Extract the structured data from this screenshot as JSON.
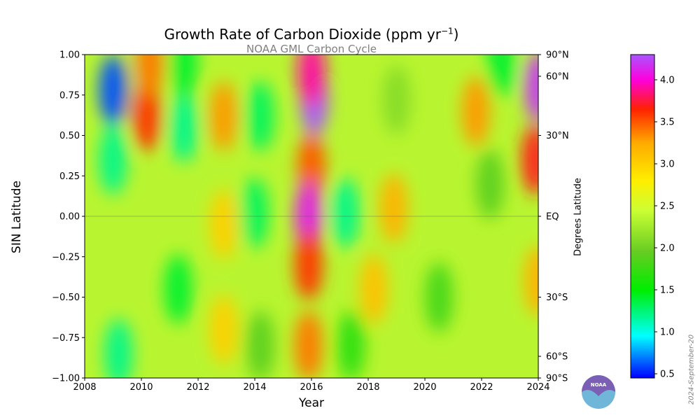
{
  "chart_data": {
    "type": "heatmap",
    "title": "Growth Rate of Carbon Dioxide (ppm yr",
    "title_superscript": "−1",
    "title_suffix": ")",
    "subtitle": "NOAA GML Carbon Cycle",
    "xlabel": "Year",
    "ylabel": "SIN Latitude",
    "ylabel_right": "Degrees Latitude",
    "xlim": [
      2008,
      2024
    ],
    "ylim": [
      -1.0,
      1.0
    ],
    "x_ticks": [
      2008,
      2010,
      2012,
      2014,
      2016,
      2018,
      2020,
      2022,
      2024
    ],
    "y_ticks": [
      -1.0,
      -0.75,
      -0.5,
      -0.25,
      0.0,
      0.25,
      0.5,
      0.75,
      1.0
    ],
    "y_tick_labels": [
      "−1.00",
      "−0.75",
      "−0.50",
      "−0.25",
      "0.00",
      "0.25",
      "0.50",
      "0.75",
      "1.00"
    ],
    "right_axis_ticks": [
      {
        "sin": 1.0,
        "label": "90°N"
      },
      {
        "sin": 0.866,
        "label": "60°N"
      },
      {
        "sin": 0.5,
        "label": "30°N"
      },
      {
        "sin": 0.0,
        "label": "EQ"
      },
      {
        "sin": -0.5,
        "label": "30°S"
      },
      {
        "sin": -0.866,
        "label": "60°S"
      },
      {
        "sin": -1.0,
        "label": "90°S"
      }
    ],
    "colorbar": {
      "min": 0.45,
      "max": 4.3,
      "ticks": [
        0.5,
        1.0,
        1.5,
        2.0,
        2.5,
        3.0,
        3.5,
        4.0
      ],
      "tick_labels": [
        "0.5",
        "1.0",
        "1.5",
        "2.0",
        "2.5",
        "3.0",
        "3.5",
        "4.0"
      ],
      "colormap": [
        [
          0.45,
          "#0000ff"
        ],
        [
          0.95,
          "#00ffff"
        ],
        [
          1.5,
          "#00ee00"
        ],
        [
          1.95,
          "#66cc22"
        ],
        [
          2.45,
          "#ccff33"
        ],
        [
          2.8,
          "#ffee00"
        ],
        [
          3.25,
          "#ffaa00"
        ],
        [
          3.65,
          "#ff2200"
        ],
        [
          4.0,
          "#ff00dd"
        ],
        [
          4.3,
          "#aa55ff"
        ]
      ]
    },
    "grid": false,
    "equator_line": true,
    "features": [
      {
        "year": 2009.0,
        "lat": 0.78,
        "value": 0.6
      },
      {
        "year": 2009.0,
        "lat": 0.35,
        "value": 1.2
      },
      {
        "year": 2010.2,
        "lat": 0.62,
        "value": 3.6
      },
      {
        "year": 2010.3,
        "lat": 0.95,
        "value": 3.4
      },
      {
        "year": 2011.5,
        "lat": 0.55,
        "value": 1.2
      },
      {
        "year": 2011.5,
        "lat": 0.95,
        "value": 1.4
      },
      {
        "year": 2012.9,
        "lat": 0.62,
        "value": 3.3
      },
      {
        "year": 2012.9,
        "lat": -0.05,
        "value": 3.0
      },
      {
        "year": 2012.9,
        "lat": -0.7,
        "value": 3.0
      },
      {
        "year": 2014.2,
        "lat": 0.62,
        "value": 1.3
      },
      {
        "year": 2014.0,
        "lat": 0.02,
        "value": 1.3
      },
      {
        "year": 2014.2,
        "lat": -0.8,
        "value": 1.9
      },
      {
        "year": 2011.3,
        "lat": -0.45,
        "value": 1.4
      },
      {
        "year": 2009.2,
        "lat": -0.85,
        "value": 1.2
      },
      {
        "year": 2016.1,
        "lat": 0.72,
        "value": 4.3
      },
      {
        "year": 2016.0,
        "lat": 0.9,
        "value": 3.9
      },
      {
        "year": 2016.0,
        "lat": 0.3,
        "value": 3.5
      },
      {
        "year": 2015.9,
        "lat": 0.0,
        "value": 4.1
      },
      {
        "year": 2015.9,
        "lat": -0.3,
        "value": 3.6
      },
      {
        "year": 2015.9,
        "lat": -0.8,
        "value": 3.4
      },
      {
        "year": 2017.2,
        "lat": 0.02,
        "value": 1.2
      },
      {
        "year": 2017.4,
        "lat": -0.8,
        "value": 1.7
      },
      {
        "year": 2018.9,
        "lat": 0.05,
        "value": 3.2
      },
      {
        "year": 2018.2,
        "lat": -0.45,
        "value": 3.1
      },
      {
        "year": 2019.0,
        "lat": 0.72,
        "value": 2.1
      },
      {
        "year": 2020.5,
        "lat": -0.5,
        "value": 1.8
      },
      {
        "year": 2021.8,
        "lat": 0.65,
        "value": 3.3
      },
      {
        "year": 2022.3,
        "lat": 0.2,
        "value": 1.9
      },
      {
        "year": 2022.7,
        "lat": 0.95,
        "value": 1.4
      },
      {
        "year": 2023.9,
        "lat": 0.35,
        "value": 3.7
      },
      {
        "year": 2024.0,
        "lat": 0.8,
        "value": 4.2
      },
      {
        "year": 2024.0,
        "lat": -0.4,
        "value": 3.2
      }
    ]
  },
  "datestamp": "2024-September-20",
  "logo": {
    "text": "NOAA",
    "colors": [
      "#7b5fb5",
      "#6fb6d8"
    ]
  }
}
